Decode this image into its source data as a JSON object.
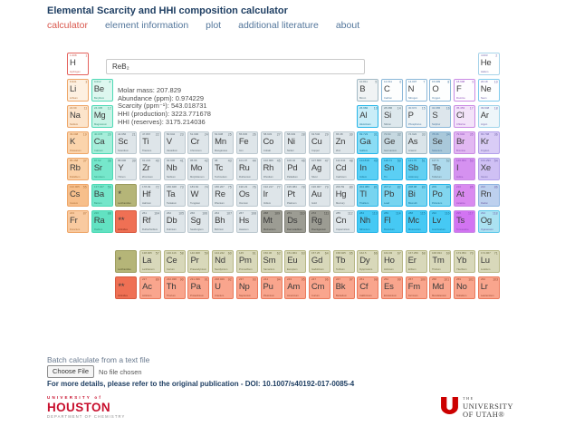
{
  "header": {
    "title": "Elemental Scarcity and HHI composition calculator",
    "tabs": [
      {
        "label": "calculator",
        "active": true
      },
      {
        "label": "element information",
        "active": false
      },
      {
        "label": "plot",
        "active": false
      },
      {
        "label": "additional literature",
        "active": false
      },
      {
        "label": "about",
        "active": false
      }
    ]
  },
  "calculator": {
    "formula": {
      "value": "ReB₂",
      "placeholder": ""
    },
    "results": [
      {
        "label": "Molar mass",
        "value": "207.829"
      },
      {
        "label": "Abundance (ppm)",
        "value": "0.974229"
      },
      {
        "label": "Scarcity (ppm⁻¹)",
        "value": "543.018731"
      },
      {
        "label": "HHI (production)",
        "value": "3223.771678"
      },
      {
        "label": "HHI (reserves)",
        "value": "3175.214036"
      }
    ]
  },
  "batch": {
    "label": "Batch calculate from a text file",
    "choose_file_button": "Choose File",
    "no_file_text": "No file chosen"
  },
  "footer": {
    "doi_line": "For more details, please refer to the original publication - DOI: 10.1007/s40192-017-0085-4",
    "houston_logo": {
      "line1": "UNIVERSITY of",
      "line2": "HOUSTON",
      "line3": "DEPARTMENT OF CHEMISTRY"
    },
    "utah_logo": {
      "line1": "THE",
      "line2": "UNIVERSITY",
      "line3": "OF UTAH®",
      "u_icon": "utah-block-u-icon",
      "red": "#cc0000"
    }
  },
  "colors": {
    "title_navy": "#1f3f63",
    "tab_active_red": "#d9574d",
    "tab_inactive_blue": "#53769b"
  },
  "periodic_table": {
    "columns": 18,
    "categories": {
      "hydrogen": {
        "bg": "#ffffff",
        "border": "#e4625d",
        "text": "#c85a50"
      },
      "alkali": {
        "bg": "#fbd4ac",
        "border": "#eea668",
        "text": "#b07038"
      },
      "alkaline": {
        "bg": "#a6eeda",
        "border": "#4ed9b5",
        "text": "#2e9478"
      },
      "transition": {
        "bg": "#dee5e9",
        "border": "#bcc8cf",
        "text": "#5d6a72"
      },
      "unknown": {
        "bg": "#9c9c93",
        "border": "#83837a",
        "text": "#3c3c38"
      },
      "posttransition": {
        "bg": "#5bcff4",
        "border": "#27b5e8",
        "text": "#116e92"
      },
      "metalloid": {
        "bg": "#dde8ed",
        "border": "#a2b9c4",
        "text": "#56707c"
      },
      "nonmetal": {
        "bg": "#fdfefe",
        "border": "#8ab7d8",
        "text": "#45759e"
      },
      "halogen": {
        "bg": "#e2b8f2",
        "border": "#c98ae4",
        "text": "#8e4cba"
      },
      "noble": {
        "bg": "#eef6fa",
        "border": "#b2a0ea",
        "text": "#6f62a8"
      },
      "lanthanide": {
        "bg": "#d8d8ba",
        "border": "#b7b786",
        "text": "#6d6d44"
      },
      "actinide": {
        "bg": "#f9a58d",
        "border": "#ea7a5c",
        "text": "#96452c"
      },
      "lanmark": {
        "bg": "#b5b578",
        "border": "#9c9c5e",
        "text": "#55552e"
      },
      "actmark": {
        "bg": "#ef7054",
        "border": "#d85a40",
        "text": "#7c2c18"
      }
    },
    "bg_overrides": {
      "Li": "#fdf0e1",
      "Na": "#fce4cb",
      "K": "#fbd4ac",
      "Rb": "#fad0a6",
      "Cs": "#f7bf8b",
      "Fr": "#f9caa0",
      "Be": "#ddf7ef",
      "Mg": "#c9f3e6",
      "Ca": "#a6eeda",
      "Sr": "#76e7cb",
      "Ba": "#74e6ca",
      "Ra": "#62e2c2",
      "Al": "#c9edf8",
      "Ga": "#8adcf4",
      "Tl": "#77d4f0",
      "Pb": "#77d4f0",
      "Bi": "#77d4f0",
      "Po": "#81d6f0",
      "Sb": "#62d0f2",
      "Nh": "#46c9f4",
      "Fl": "#46c9f4",
      "Mc": "#46c9f4",
      "Lv": "#46c9f4",
      "B": "#f0f3f4",
      "Ge": "#c6d8e0",
      "As": "#dae4e9",
      "Te": "#aedaed",
      "P": "#ebf1f4",
      "S": "#dde6ec",
      "Se": "#a9c8da",
      "F": "#fefcff",
      "Cl": "#f3e3f9",
      "I": "#d591f0",
      "At": "#da8af0",
      "Ts": "#d274f2",
      "He": "#ffffff",
      "Ne": "#fdfeff",
      "Ar": "#eef6fa",
      "Kr": "#d9ccf6",
      "Xe": "#cfc0f4",
      "Rn": "#bdd0ee",
      "Og": "#abe2f2"
    },
    "border_overrides": {
      "He": "#a8d4ea",
      "Ne": "#7ecaec",
      "Ar": "#9fd4ea",
      "Rn": "#8fb4e0",
      "Og": "#5fc8ea"
    },
    "elements": [
      [
        1,
        "H",
        "Hydrogen",
        "1.008",
        1,
        1,
        "hydrogen"
      ],
      [
        2,
        "He",
        "Helium",
        "4.003",
        1,
        18,
        "noble"
      ],
      [
        3,
        "Li",
        "Lithium",
        "6.941",
        2,
        1,
        "alkali"
      ],
      [
        4,
        "Be",
        "Beryllium",
        "9.012",
        2,
        2,
        "alkaline"
      ],
      [
        5,
        "B",
        "Boron",
        "10.811",
        2,
        13,
        "metalloid"
      ],
      [
        6,
        "C",
        "Carbon",
        "12.011",
        2,
        14,
        "nonmetal"
      ],
      [
        7,
        "N",
        "Nitrogen",
        "14.007",
        2,
        15,
        "nonmetal"
      ],
      [
        8,
        "O",
        "Oxygen",
        "15.999",
        2,
        16,
        "nonmetal"
      ],
      [
        9,
        "F",
        "Fluorine",
        "18.998",
        2,
        17,
        "halogen"
      ],
      [
        10,
        "Ne",
        "Neon",
        "20.18",
        2,
        18,
        "noble"
      ],
      [
        11,
        "Na",
        "Sodium",
        "22.99",
        3,
        1,
        "alkali"
      ],
      [
        12,
        "Mg",
        "Magnesium",
        "24.305",
        3,
        2,
        "alkaline"
      ],
      [
        13,
        "Al",
        "Aluminium",
        "26.982",
        3,
        13,
        "posttransition"
      ],
      [
        14,
        "Si",
        "Silicon",
        "28.086",
        3,
        14,
        "metalloid"
      ],
      [
        15,
        "P",
        "Phosphorus",
        "30.974",
        3,
        15,
        "nonmetal"
      ],
      [
        16,
        "S",
        "Sulphur",
        "32.065",
        3,
        16,
        "nonmetal"
      ],
      [
        17,
        "Cl",
        "Chlorine",
        "35.453",
        3,
        17,
        "halogen"
      ],
      [
        18,
        "Ar",
        "Argon",
        "39.948",
        3,
        18,
        "noble"
      ],
      [
        19,
        "K",
        "Potassium",
        "39.098",
        4,
        1,
        "alkali"
      ],
      [
        20,
        "Ca",
        "Calcium",
        "40.078",
        4,
        2,
        "alkaline"
      ],
      [
        21,
        "Sc",
        "Scandium",
        "44.956",
        4,
        3,
        "transition"
      ],
      [
        22,
        "Ti",
        "Titanium",
        "47.867",
        4,
        4,
        "transition"
      ],
      [
        23,
        "V",
        "Vanadium",
        "50.942",
        4,
        5,
        "transition"
      ],
      [
        24,
        "Cr",
        "Chromium",
        "51.996",
        4,
        6,
        "transition"
      ],
      [
        25,
        "Mn",
        "Manganese",
        "54.938",
        4,
        7,
        "transition"
      ],
      [
        26,
        "Fe",
        "Iron",
        "55.845",
        4,
        8,
        "transition"
      ],
      [
        27,
        "Co",
        "Cobalt",
        "58.933",
        4,
        9,
        "transition"
      ],
      [
        28,
        "Ni",
        "Nickel",
        "58.693",
        4,
        10,
        "transition"
      ],
      [
        29,
        "Cu",
        "Copper",
        "63.546",
        4,
        11,
        "transition"
      ],
      [
        30,
        "Zn",
        "Zinc",
        "65.38",
        4,
        12,
        "transition"
      ],
      [
        31,
        "Ga",
        "Gallium",
        "69.723",
        4,
        13,
        "posttransition"
      ],
      [
        32,
        "Ge",
        "Germanium",
        "72.64",
        4,
        14,
        "metalloid"
      ],
      [
        33,
        "As",
        "Arsenic",
        "74.922",
        4,
        15,
        "metalloid"
      ],
      [
        34,
        "Se",
        "Selenium",
        "78.96",
        4,
        16,
        "nonmetal"
      ],
      [
        35,
        "Br",
        "Bromine",
        "79.904",
        4,
        17,
        "halogen"
      ],
      [
        36,
        "Kr",
        "Krypton",
        "83.798",
        4,
        18,
        "noble"
      ],
      [
        37,
        "Rb",
        "Rubidium",
        "85.468",
        5,
        1,
        "alkali"
      ],
      [
        38,
        "Sr",
        "Strontium",
        "87.62",
        5,
        2,
        "alkaline"
      ],
      [
        39,
        "Y",
        "Yttrium",
        "88.906",
        5,
        3,
        "transition"
      ],
      [
        40,
        "Zr",
        "Zirconium",
        "91.224",
        5,
        4,
        "transition"
      ],
      [
        41,
        "Nb",
        "Niobium",
        "92.906",
        5,
        5,
        "transition"
      ],
      [
        42,
        "Mo",
        "Molybdenum",
        "95.96",
        5,
        6,
        "transition"
      ],
      [
        43,
        "Tc",
        "Technetium",
        "98",
        5,
        7,
        "transition"
      ],
      [
        44,
        "Ru",
        "Ruthenium",
        "101.07",
        5,
        8,
        "transition"
      ],
      [
        45,
        "Rh",
        "Rhodium",
        "102.906",
        5,
        9,
        "transition"
      ],
      [
        46,
        "Pd",
        "Palladium",
        "106.42",
        5,
        10,
        "transition"
      ],
      [
        47,
        "Ag",
        "Silver",
        "107.868",
        5,
        11,
        "transition"
      ],
      [
        48,
        "Cd",
        "Cadmium",
        "112.411",
        5,
        12,
        "transition"
      ],
      [
        49,
        "In",
        "Indium",
        "114.818",
        5,
        13,
        "posttransition"
      ],
      [
        50,
        "Sn",
        "Tin",
        "118.71",
        5,
        14,
        "posttransition"
      ],
      [
        51,
        "Sb",
        "Antimony",
        "121.76",
        5,
        15,
        "posttransition"
      ],
      [
        52,
        "Te",
        "Tellurium",
        "127.6",
        5,
        16,
        "metalloid"
      ],
      [
        53,
        "I",
        "Iodine",
        "126.904",
        5,
        17,
        "halogen"
      ],
      [
        54,
        "Xe",
        "Xenon",
        "131.293",
        5,
        18,
        "noble"
      ],
      [
        55,
        "Cs",
        "Cesium",
        "132.905",
        6,
        1,
        "alkali"
      ],
      [
        56,
        "Ba",
        "Barium",
        "137.327",
        6,
        2,
        "alkaline"
      ],
      [
        72,
        "Hf",
        "Hafnium",
        "178.49",
        6,
        4,
        "transition"
      ],
      [
        73,
        "Ta",
        "Tantalum",
        "180.948",
        6,
        5,
        "transition"
      ],
      [
        74,
        "W",
        "Tungsten",
        "183.84",
        6,
        6,
        "transition"
      ],
      [
        75,
        "Re",
        "Rhenium",
        "186.207",
        6,
        7,
        "transition"
      ],
      [
        76,
        "Os",
        "Osmium",
        "190.23",
        6,
        8,
        "transition"
      ],
      [
        77,
        "Ir",
        "Iridium",
        "192.217",
        6,
        9,
        "transition"
      ],
      [
        78,
        "Pt",
        "Platinum",
        "195.084",
        6,
        10,
        "transition"
      ],
      [
        79,
        "Au",
        "Gold",
        "196.967",
        6,
        11,
        "transition"
      ],
      [
        80,
        "Hg",
        "Mercury",
        "200.59",
        6,
        12,
        "transition"
      ],
      [
        81,
        "Tl",
        "Thallium",
        "204.383",
        6,
        13,
        "posttransition"
      ],
      [
        82,
        "Pb",
        "Lead",
        "207.2",
        6,
        14,
        "posttransition"
      ],
      [
        83,
        "Bi",
        "Bismuth",
        "208.98",
        6,
        15,
        "posttransition"
      ],
      [
        84,
        "Po",
        "Polonium",
        "209",
        6,
        16,
        "posttransition"
      ],
      [
        85,
        "At",
        "Astatine",
        "210",
        6,
        17,
        "halogen"
      ],
      [
        86,
        "Rn",
        "Radon",
        "222",
        6,
        18,
        "noble"
      ],
      [
        87,
        "Fr",
        "Francium",
        "223",
        7,
        1,
        "alkali"
      ],
      [
        88,
        "Ra",
        "Radium",
        "226",
        7,
        2,
        "alkaline"
      ],
      [
        104,
        "Rf",
        "Rutherfordium",
        "261",
        7,
        4,
        "transition"
      ],
      [
        105,
        "Db",
        "Dubnium",
        "262",
        7,
        5,
        "transition"
      ],
      [
        106,
        "Sg",
        "Seaborgium",
        "266",
        7,
        6,
        "transition"
      ],
      [
        107,
        "Bh",
        "Bohrium",
        "264",
        7,
        7,
        "transition"
      ],
      [
        108,
        "Hs",
        "Hassium",
        "267",
        7,
        8,
        "transition"
      ],
      [
        109,
        "Mt",
        "Meitnerium",
        "268",
        7,
        9,
        "unknown"
      ],
      [
        110,
        "Ds",
        "Darmstadtium",
        "271",
        7,
        10,
        "unknown"
      ],
      [
        111,
        "Rg",
        "Roentgenium",
        "272",
        7,
        11,
        "unknown"
      ],
      [
        112,
        "Cn",
        "Copernicium",
        "285",
        7,
        12,
        "transition"
      ],
      [
        113,
        "Nh",
        "Nihonium",
        "284",
        7,
        13,
        "posttransition"
      ],
      [
        114,
        "Fl",
        "Flerovium",
        "289",
        7,
        14,
        "posttransition"
      ],
      [
        115,
        "Mc",
        "Moscovium",
        "288",
        7,
        15,
        "posttransition"
      ],
      [
        116,
        "Lv",
        "Livermorium",
        "292",
        7,
        16,
        "posttransition"
      ],
      [
        117,
        "Ts",
        "Tennessine",
        "295",
        7,
        17,
        "halogen"
      ],
      [
        118,
        "Og",
        "Oganesson",
        "294",
        7,
        18,
        "noble"
      ],
      [
        57,
        "La",
        "Lanthanum",
        "138.905",
        9,
        4,
        "lanthanide"
      ],
      [
        58,
        "Ce",
        "Cerium",
        "140.116",
        9,
        5,
        "lanthanide"
      ],
      [
        59,
        "Pr",
        "Praseodymium",
        "140.908",
        9,
        6,
        "lanthanide"
      ],
      [
        60,
        "Nd",
        "Neodymium",
        "144.242",
        9,
        7,
        "lanthanide"
      ],
      [
        61,
        "Pm",
        "Promethium",
        "145",
        9,
        8,
        "lanthanide"
      ],
      [
        62,
        "Sm",
        "Samarium",
        "150.36",
        9,
        9,
        "lanthanide"
      ],
      [
        63,
        "Eu",
        "Europium",
        "151.964",
        9,
        10,
        "lanthanide"
      ],
      [
        64,
        "Gd",
        "Gadolinium",
        "157.25",
        9,
        11,
        "lanthanide"
      ],
      [
        65,
        "Tb",
        "Terbium",
        "158.925",
        9,
        12,
        "lanthanide"
      ],
      [
        66,
        "Dy",
        "Dysprosium",
        "162.5",
        9,
        13,
        "lanthanide"
      ],
      [
        67,
        "Ho",
        "Holmium",
        "164.93",
        9,
        14,
        "lanthanide"
      ],
      [
        68,
        "Er",
        "Erbium",
        "167.259",
        9,
        15,
        "lanthanide"
      ],
      [
        69,
        "Tm",
        "Thulium",
        "168.934",
        9,
        16,
        "lanthanide"
      ],
      [
        70,
        "Yb",
        "Ytterbium",
        "173.054",
        9,
        17,
        "lanthanide"
      ],
      [
        71,
        "Lu",
        "Lutetium",
        "174.967",
        9,
        18,
        "lanthanide"
      ],
      [
        89,
        "Ac",
        "Actinium",
        "227",
        10,
        4,
        "actinide"
      ],
      [
        90,
        "Th",
        "Thorium",
        "232.038",
        10,
        5,
        "actinide"
      ],
      [
        91,
        "Pa",
        "Protactinium",
        "231.036",
        10,
        6,
        "actinide"
      ],
      [
        92,
        "U",
        "Uranium",
        "238.029",
        10,
        7,
        "actinide"
      ],
      [
        93,
        "Np",
        "Neptunium",
        "237",
        10,
        8,
        "actinide"
      ],
      [
        94,
        "Pu",
        "Plutonium",
        "244",
        10,
        9,
        "actinide"
      ],
      [
        95,
        "Am",
        "Americium",
        "243",
        10,
        10,
        "actinide"
      ],
      [
        96,
        "Cm",
        "Curium",
        "247",
        10,
        11,
        "actinide"
      ],
      [
        97,
        "Bk",
        "Berkelium",
        "247",
        10,
        12,
        "actinide"
      ],
      [
        98,
        "Cf",
        "Californium",
        "251",
        10,
        13,
        "actinide"
      ],
      [
        99,
        "Es",
        "Einsteinium",
        "252",
        10,
        14,
        "actinide"
      ],
      [
        100,
        "Fm",
        "Fermium",
        "257",
        10,
        15,
        "actinide"
      ],
      [
        101,
        "Md",
        "Mendelevium",
        "258",
        10,
        16,
        "actinide"
      ],
      [
        102,
        "No",
        "Nobelium",
        "259",
        10,
        17,
        "actinide"
      ],
      [
        103,
        "Lr",
        "Lawrencium",
        "262",
        10,
        18,
        "actinide"
      ]
    ],
    "placeholders": [
      {
        "sym": "*",
        "name": "Lanthanides",
        "row": 6,
        "col": 3,
        "cat": "lanmark"
      },
      {
        "sym": "**",
        "name": "Actinides",
        "row": 7,
        "col": 3,
        "cat": "actmark"
      },
      {
        "sym": "*",
        "name": "Lanthanides",
        "row": 9,
        "col": 3,
        "cat": "lanmark"
      },
      {
        "sym": "**",
        "name": "Actinides",
        "row": 10,
        "col": 3,
        "cat": "actmark"
      }
    ]
  }
}
